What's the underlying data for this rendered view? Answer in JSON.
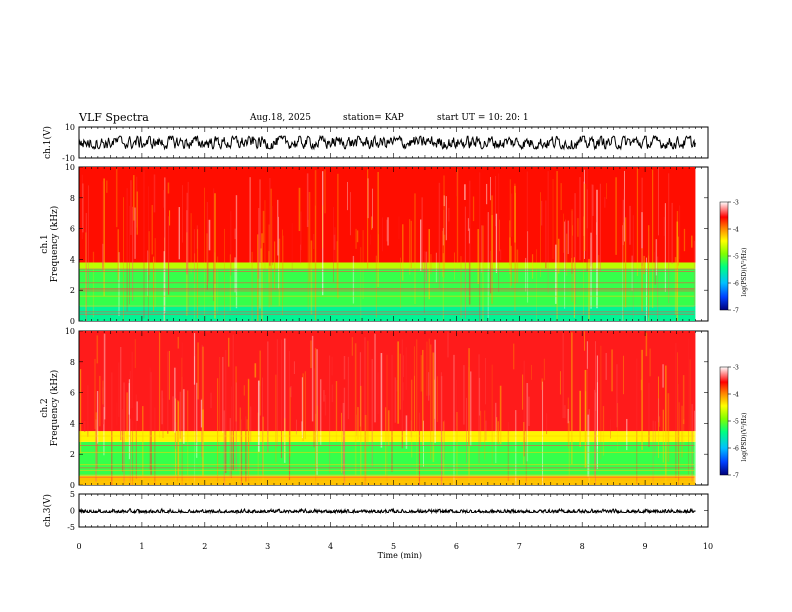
{
  "header": {
    "title": "VLF Spectra",
    "date": "Aug.18, 2025",
    "station": "station= KAP",
    "start": "start  UT  =    10: 20: 1"
  },
  "chart_data": [
    {
      "type": "line",
      "name": "ch1-waveform",
      "ylabel": "ch.1(V)",
      "ylim": [
        -10,
        10
      ],
      "ytick_labels": [
        "10",
        "-10"
      ],
      "xlim": [
        0,
        9.8
      ],
      "mean": 0,
      "amplitude_range": [
        -4,
        4
      ]
    },
    {
      "type": "heatmap",
      "name": "ch1-spectrogram",
      "ylabel": "ch.1\nFrequency (kHz)",
      "ylim": [
        0,
        10
      ],
      "ytick_labels": [
        "0",
        "2",
        "4",
        "6",
        "8",
        "10"
      ],
      "xlim": [
        0,
        9.8
      ],
      "colorbar": {
        "label": "log(PSD)(V²/Hz)",
        "range": [
          -7,
          -3
        ],
        "tick_labels": [
          "-3",
          "-4",
          "-5",
          "-6",
          "-7"
        ]
      },
      "bands": [
        {
          "from_khz": 0.0,
          "to_khz": 1.0,
          "level": -5.5
        },
        {
          "from_khz": 1.0,
          "to_khz": 3.4,
          "level": -5.2
        },
        {
          "from_khz": 3.4,
          "to_khz": 3.8,
          "level": -4.7
        },
        {
          "from_khz": 3.8,
          "to_khz": 10.0,
          "level": -3.6
        }
      ]
    },
    {
      "type": "heatmap",
      "name": "ch2-spectrogram",
      "ylabel": "ch.2\nFrequency (kHz)",
      "ylim": [
        0,
        10
      ],
      "ytick_labels": [
        "0",
        "2",
        "4",
        "6",
        "8",
        "10"
      ],
      "xlim": [
        0,
        9.8
      ],
      "colorbar": {
        "label": "log(PSD)(V²/Hz)",
        "range": [
          -7,
          -3
        ],
        "tick_labels": [
          "-3",
          "-4",
          "-5",
          "-6",
          "-7"
        ]
      },
      "bands": [
        {
          "from_khz": 0.0,
          "to_khz": 0.6,
          "level": -4.2
        },
        {
          "from_khz": 0.6,
          "to_khz": 2.8,
          "level": -5.2
        },
        {
          "from_khz": 2.8,
          "to_khz": 3.5,
          "level": -4.4
        },
        {
          "from_khz": 3.5,
          "to_khz": 10.0,
          "level": -3.5
        }
      ]
    },
    {
      "type": "line",
      "name": "ch3-waveform",
      "ylabel": "ch.3(V)",
      "ylim": [
        -5,
        5
      ],
      "ytick_labels": [
        "5",
        "0",
        "-5"
      ],
      "xlim": [
        0,
        9.8
      ],
      "mean": -0.4,
      "amplitude_range": [
        -0.6,
        0.6
      ]
    }
  ],
  "xaxis": {
    "label": "Time (min)",
    "range": [
      0,
      10
    ],
    "tick_labels": [
      "0",
      "1",
      "2",
      "3",
      "4",
      "5",
      "6",
      "7",
      "8",
      "9",
      "10"
    ]
  }
}
